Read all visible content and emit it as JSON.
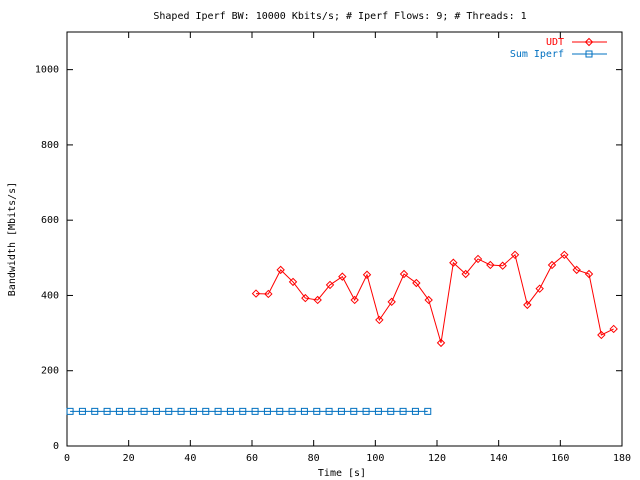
{
  "chart_data": {
    "type": "line",
    "title": "Shaped Iperf BW: 10000 Kbits/s; # Iperf Flows: 9; # Threads: 1",
    "x_label": "Time [s]",
    "y_label": "Bandwidth [Mbits/s]",
    "xlim": [
      0,
      180
    ],
    "xticks": [
      0,
      20,
      40,
      60,
      80,
      100,
      120,
      140,
      160,
      180
    ],
    "ylim": [
      0,
      1100
    ],
    "yticks": [
      0,
      200,
      400,
      600,
      800,
      1000
    ],
    "legend": "top-right",
    "series": [
      {
        "name": "UDT",
        "color": "#ff0000",
        "marker": "diamond",
        "x": [
          61.3,
          65.3,
          69.3,
          73.3,
          77.3,
          81.3,
          85.3,
          89.3,
          93.3,
          97.3,
          101.3,
          105.3,
          109.3,
          113.3,
          117.3,
          121.3,
          125.3,
          129.3,
          133.3,
          137.3,
          141.3,
          145.3,
          149.3,
          153.3,
          157.3,
          161.3,
          165.3,
          169.3,
          173.3,
          177.3
        ],
        "values": [
          405,
          404,
          468,
          436,
          393,
          388,
          428,
          450,
          388,
          455,
          335,
          383,
          457,
          433,
          388,
          274,
          487,
          457,
          497,
          481,
          479,
          508,
          375,
          418,
          481,
          508,
          468,
          457,
          295,
          311
        ]
      },
      {
        "name": "Sum Iperf",
        "color": "#0070c0",
        "marker": "square",
        "x": [
          1,
          5,
          9,
          13,
          17,
          21,
          25,
          29,
          33,
          37,
          41,
          45,
          49,
          53,
          57,
          61,
          65,
          69,
          73,
          77,
          81,
          85,
          89,
          93,
          97,
          101,
          105,
          109,
          113,
          117
        ],
        "values": [
          92,
          92,
          92,
          92,
          92,
          92,
          92,
          92,
          92,
          92,
          92,
          92,
          92,
          92,
          92,
          92,
          92,
          92,
          92,
          92,
          92,
          92,
          92,
          92,
          92,
          92,
          92,
          92,
          92,
          92
        ]
      }
    ]
  }
}
